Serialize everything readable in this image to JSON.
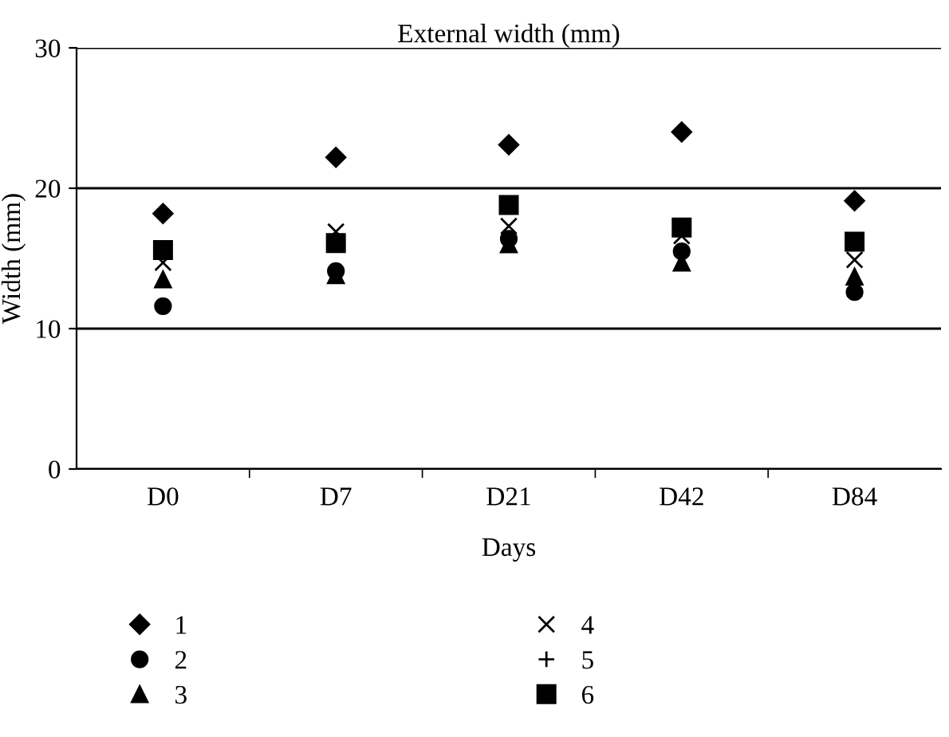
{
  "chart_data": {
    "type": "scatter",
    "title": "External width (mm)",
    "xlabel": "Days",
    "ylabel": "Width (mm)",
    "categories": [
      "D0",
      "D7",
      "D21",
      "D42",
      "D84"
    ],
    "ylim": [
      0,
      30
    ],
    "yticks": [
      0,
      10,
      20,
      30
    ],
    "grid": "y",
    "legend": "bottom",
    "series": [
      {
        "name": "1",
        "color": "#000000",
        "marker": "diamond",
        "values": [
          18.2,
          22.2,
          23.1,
          24.0,
          19.1
        ]
      },
      {
        "name": "2",
        "color": "#000000",
        "marker": "circle",
        "values": [
          11.6,
          14.1,
          16.4,
          15.5,
          12.6
        ]
      },
      {
        "name": "3",
        "color": "#000000",
        "marker": "triangle",
        "values": [
          13.5,
          13.8,
          16.0,
          14.7,
          13.7
        ]
      },
      {
        "name": "4",
        "color": "#000000",
        "marker": "cross",
        "values": [
          14.7,
          16.9,
          17.3,
          16.6,
          14.9
        ]
      },
      {
        "name": "5",
        "color": "#000000",
        "marker": "plus",
        "values": [
          null,
          null,
          null,
          null,
          null
        ]
      },
      {
        "name": "6",
        "color": "#000000",
        "marker": "square",
        "values": [
          15.6,
          16.1,
          18.8,
          17.2,
          16.2
        ]
      }
    ]
  }
}
